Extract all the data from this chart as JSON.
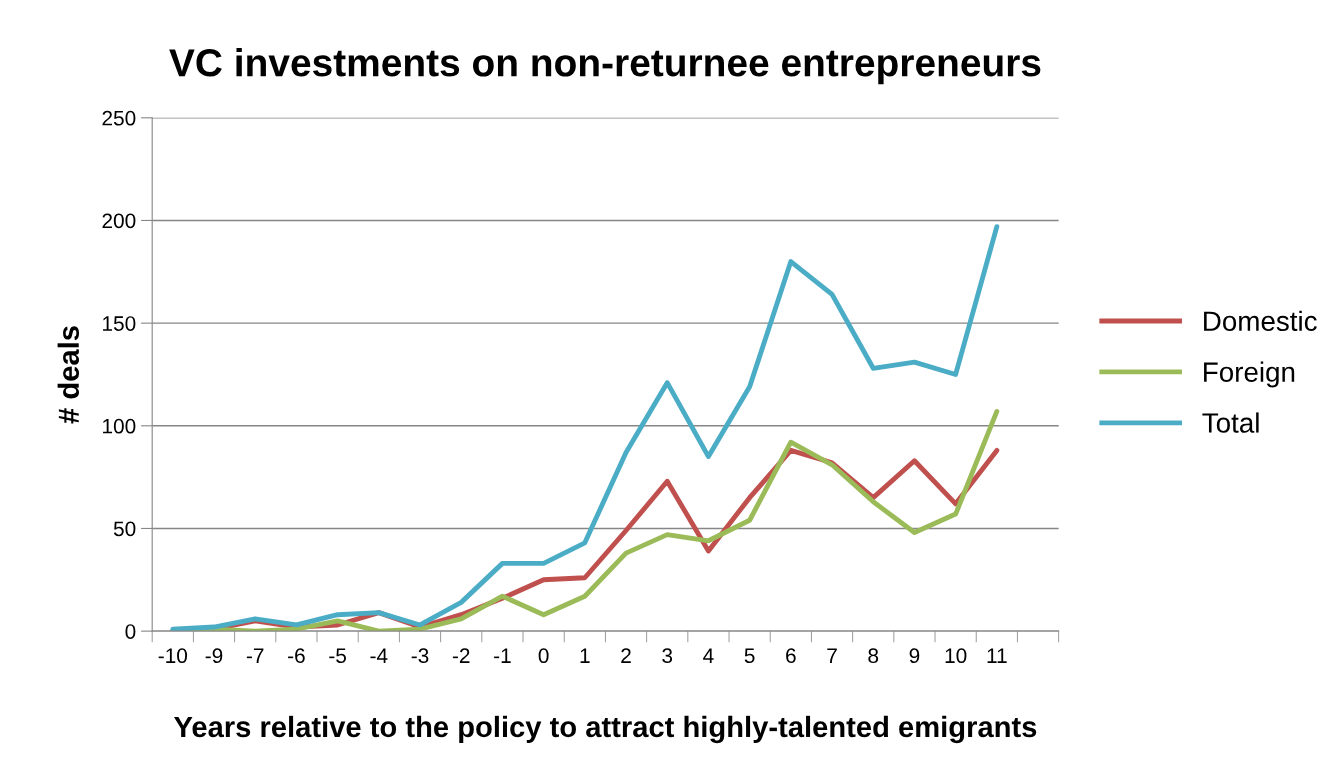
{
  "chart_data": {
    "type": "line",
    "title": "VC investments on non-returnee entrepreneurs",
    "xlabel": "Years relative to the policy to attract highly-talented emigrants",
    "ylabel": "# deals",
    "categories": [
      "-10",
      "-9",
      "-7",
      "-6",
      "-5",
      "-4",
      "-3",
      "-2",
      "-1",
      "0",
      "1",
      "2",
      "3",
      "4",
      "5",
      "6",
      "7",
      "8",
      "9",
      "10",
      "11",
      null
    ],
    "series": [
      {
        "name": "Domestic",
        "color": "#c0504d",
        "values": [
          0,
          1,
          5,
          2,
          3,
          9,
          2,
          8,
          16,
          25,
          26,
          49,
          73,
          39,
          65,
          88,
          82,
          65,
          83,
          62,
          88,
          null
        ]
      },
      {
        "name": "Foreign",
        "color": "#9bbb59",
        "values": [
          0,
          1,
          0,
          1,
          5,
          0,
          1,
          6,
          17,
          8,
          17,
          38,
          47,
          44,
          54,
          92,
          81,
          63,
          48,
          57,
          107,
          null
        ]
      },
      {
        "name": "Total",
        "color": "#4bacc6",
        "values": [
          1,
          2,
          6,
          3,
          8,
          9,
          3,
          14,
          33,
          33,
          43,
          87,
          121,
          85,
          119,
          180,
          164,
          128,
          131,
          125,
          197,
          null
        ]
      }
    ],
    "ylim": [
      0,
      250
    ],
    "yticks": [
      0,
      50,
      100,
      150,
      200,
      250
    ],
    "grid": "y",
    "legend": "right",
    "marker": "none",
    "line_style": "solid"
  }
}
